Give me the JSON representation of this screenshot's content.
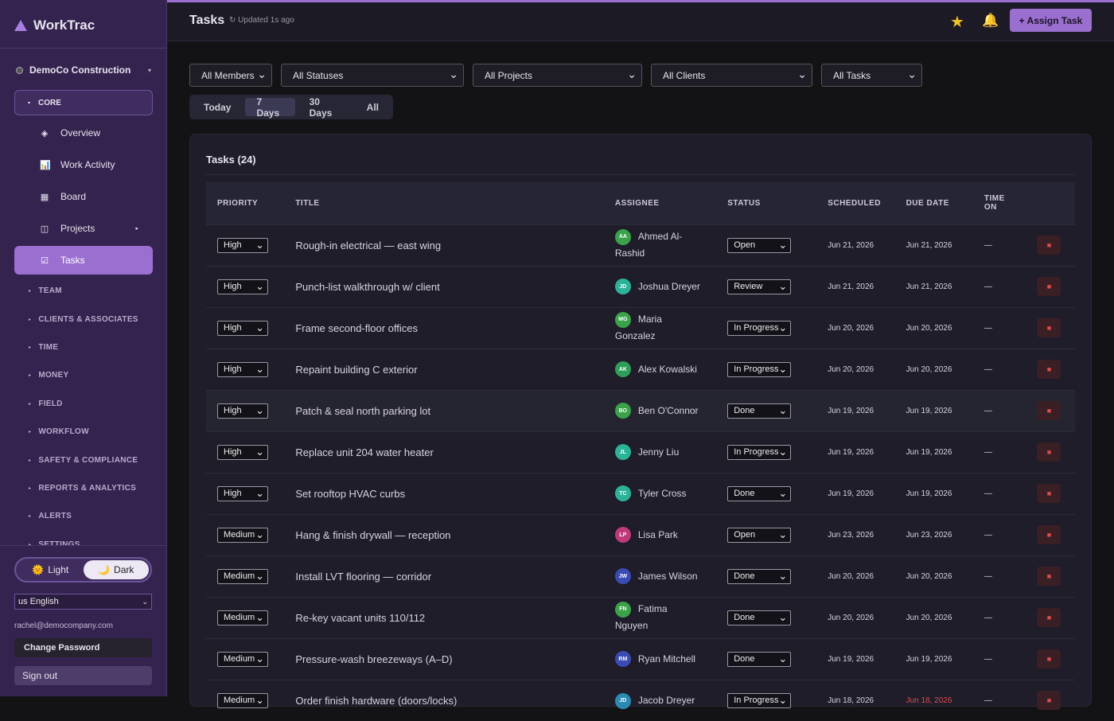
{
  "sidebar": {
    "brand": "WorkTrac",
    "org": "DemoCo Construction",
    "core_label": "CORE",
    "core_items": [
      "Overview",
      "Work Activity",
      "Board",
      "Projects",
      "Tasks"
    ],
    "sections": [
      "TEAM",
      "CLIENTS & ASSOCIATES",
      "TIME",
      "MONEY",
      "FIELD",
      "WORKFLOW",
      "SAFETY & COMPLIANCE",
      "REPORTS & ANALYTICS",
      "ALERTS",
      "SETTINGS"
    ],
    "theme": [
      "Light",
      "Dark"
    ],
    "language": "us English",
    "email": "rachel@democompany.com",
    "change_password": "Change Password",
    "sign_out": "Sign out"
  },
  "header": {
    "title": "Tasks",
    "updated": "Updated 1s ago",
    "assign": "+ Assign Task"
  },
  "filters": [
    "All Members",
    "All Statuses",
    "All Projects",
    "All Clients",
    "All Tasks"
  ],
  "ranges": [
    "Today",
    "7 Days",
    "30 Days",
    "All"
  ],
  "table": {
    "title": "Tasks (24)",
    "columns": [
      "PRIORITY",
      "TITLE",
      "ASSIGNEE",
      "STATUS",
      "SCHEDULED",
      "DUE DATE",
      "TIME ON"
    ],
    "rows": [
      {
        "priority": "High",
        "title": "Rough-in electrical — east wing",
        "initials": "AA",
        "assignee": "Ahmed Al-Rashid",
        "status": "Open",
        "scheduled": "Jun 21, 2026",
        "due": "Jun 21, 2026",
        "time": "—"
      },
      {
        "priority": "High",
        "title": "Punch-list walkthrough w/ client",
        "initials": "JD",
        "assignee": "Joshua Dreyer",
        "status": "Review",
        "scheduled": "Jun 21, 2026",
        "due": "Jun 21, 2026",
        "time": "—"
      },
      {
        "priority": "High",
        "title": "Frame second-floor offices",
        "initials": "MG",
        "assignee": "Maria Gonzalez",
        "status": "In Progress",
        "scheduled": "Jun 20, 2026",
        "due": "Jun 20, 2026",
        "time": "—"
      },
      {
        "priority": "High",
        "title": "Repaint building C exterior",
        "initials": "AK",
        "assignee": "Alex Kowalski",
        "status": "In Progress",
        "scheduled": "Jun 20, 2026",
        "due": "Jun 20, 2026",
        "time": "—"
      },
      {
        "priority": "High",
        "title": "Patch & seal north parking lot",
        "initials": "BO",
        "assignee": "Ben O'Connor",
        "status": "Done",
        "scheduled": "Jun 19, 2026",
        "due": "Jun 19, 2026",
        "time": "—"
      },
      {
        "priority": "High",
        "title": "Replace unit 204 water heater",
        "initials": "JL",
        "assignee": "Jenny Liu",
        "status": "In Progress",
        "scheduled": "Jun 19, 2026",
        "due": "Jun 19, 2026",
        "time": "—"
      },
      {
        "priority": "High",
        "title": "Set rooftop HVAC curbs",
        "initials": "TC",
        "assignee": "Tyler Cross",
        "status": "Done",
        "scheduled": "Jun 19, 2026",
        "due": "Jun 19, 2026",
        "time": "—"
      },
      {
        "priority": "Medium",
        "title": "Hang & finish drywall — reception",
        "initials": "LP",
        "assignee": "Lisa Park",
        "status": "Open",
        "scheduled": "Jun 23, 2026",
        "due": "Jun 23, 2026",
        "time": "—"
      },
      {
        "priority": "Medium",
        "title": "Install LVT flooring — corridor",
        "initials": "JW",
        "assignee": "James Wilson",
        "status": "Done",
        "scheduled": "Jun 20, 2026",
        "due": "Jun 20, 2026",
        "time": "—"
      },
      {
        "priority": "Medium",
        "title": "Re-key vacant units 110/112",
        "initials": "FN",
        "assignee": "Fatima Nguyen",
        "status": "Done",
        "scheduled": "Jun 20, 2026",
        "due": "Jun 20, 2026",
        "time": "—"
      },
      {
        "priority": "Medium",
        "title": "Pressure-wash breezeways (A–D)",
        "initials": "RM",
        "assignee": "Ryan Mitchell",
        "status": "Done",
        "scheduled": "Jun 19, 2026",
        "due": "Jun 19, 2026",
        "time": "—"
      },
      {
        "priority": "Medium",
        "title": "Order finish hardware (doors/locks)",
        "initials": "JD",
        "assignee": "Jacob Dreyer",
        "status": "In Progress",
        "scheduled": "Jun 18, 2026",
        "due": "Jun 18, 2026",
        "time": "—"
      }
    ]
  }
}
